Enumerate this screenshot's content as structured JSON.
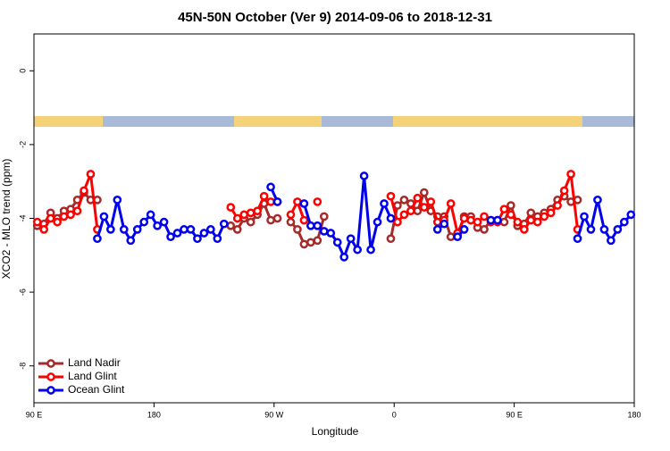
{
  "chart_data": {
    "type": "line",
    "title": "45N-50N October (Ver 9)   2014-09-06 to 2018-12-31",
    "x_label": "Longitude",
    "y_label": "XCO2 - MLO trend (ppm)",
    "x": [
      92.5,
      97.5,
      102.5,
      107.5,
      112.5,
      117.5,
      122.5,
      127.5,
      132.5,
      137.5,
      142.5,
      147.5,
      152.5,
      157.5,
      162.5,
      167.5,
      172.5,
      177.5,
      182.5,
      187.5,
      192.5,
      197.5,
      202.5,
      207.5,
      212.5,
      217.5,
      222.5,
      227.5,
      232.5,
      237.5,
      242.5,
      247.5,
      252.5,
      257.5,
      262.5,
      267.5,
      272.5,
      277.5,
      282.5,
      287.5,
      292.5,
      297.5,
      302.5,
      307.5,
      312.5,
      317.5,
      322.5,
      327.5,
      332.5,
      337.5,
      342.5,
      347.5,
      352.5,
      357.5,
      362.5,
      367.5,
      372.5,
      377.5,
      382.5,
      387.5,
      392.5,
      397.5,
      402.5,
      407.5,
      412.5,
      417.5,
      422.5,
      427.5,
      432.5,
      437.5,
      442.5,
      447.5,
      452.5,
      457.5,
      462.5,
      467.5,
      472.5,
      477.5,
      482.5,
      487.5,
      492.5,
      497.5,
      502.5,
      507.5,
      512.5,
      517.5,
      522.5,
      527.5,
      532.5,
      537.5
    ],
    "series": [
      {
        "name": "Land Nadir",
        "color": "#a52a2a",
        "values": [
          -4.2,
          -4.15,
          -3.85,
          -4.0,
          -3.8,
          -3.75,
          -3.5,
          -3.3,
          -3.5,
          -3.5,
          null,
          null,
          null,
          null,
          null,
          null,
          null,
          null,
          null,
          null,
          null,
          null,
          null,
          null,
          null,
          null,
          null,
          null,
          null,
          -4.2,
          -4.3,
          -4.0,
          -4.1,
          -3.9,
          -3.6,
          -4.05,
          -4.0,
          null,
          -4.1,
          -4.3,
          -4.7,
          -4.65,
          -4.6,
          -3.95,
          null,
          null,
          null,
          null,
          null,
          null,
          null,
          null,
          null,
          -4.55,
          -3.65,
          -3.5,
          -3.6,
          -3.8,
          -3.3,
          -3.8,
          -3.95,
          -3.95,
          -4.5,
          -4.45,
          -3.95,
          -3.95,
          -4.25,
          -4.3,
          -4.05,
          -4.05,
          -4.1,
          -3.65,
          -4.2,
          -4.15,
          -3.85,
          -3.95,
          -3.85,
          -3.75,
          -3.5,
          -3.4,
          -3.55,
          -3.5,
          null,
          null,
          null,
          null,
          null,
          null,
          null,
          null
        ]
      },
      {
        "name": "Land Glint",
        "color": "#ff0000",
        "values": [
          -4.1,
          -4.3,
          -4.0,
          -4.1,
          -3.95,
          -3.9,
          -3.8,
          -3.25,
          -2.8,
          -4.3,
          null,
          null,
          null,
          null,
          null,
          null,
          null,
          null,
          null,
          null,
          null,
          null,
          null,
          null,
          null,
          null,
          null,
          null,
          null,
          -3.7,
          -4.0,
          -3.9,
          -3.85,
          -3.8,
          -3.4,
          -3.55,
          -3.55,
          null,
          -3.9,
          -3.55,
          -4.05,
          null,
          -3.55,
          null,
          null,
          null,
          null,
          null,
          null,
          null,
          null,
          null,
          null,
          -3.4,
          -4.1,
          -3.9,
          -3.8,
          -3.45,
          -3.7,
          -3.55,
          -4.1,
          -4.05,
          -3.6,
          -4.4,
          -4.0,
          -4.05,
          -4.1,
          -3.95,
          -4.1,
          -4.1,
          -3.75,
          -3.9,
          -4.1,
          -4.3,
          -4.05,
          -4.1,
          -3.95,
          -3.85,
          -3.65,
          -3.25,
          -2.8,
          -4.3,
          null,
          null,
          null,
          null,
          null,
          null,
          null,
          null
        ]
      },
      {
        "name": "Ocean Glint",
        "color": "#0000ee",
        "values": [
          null,
          null,
          null,
          null,
          null,
          null,
          null,
          null,
          null,
          -4.55,
          -3.95,
          -4.3,
          -3.5,
          -4.3,
          -4.6,
          -4.3,
          -4.1,
          -3.9,
          -4.2,
          -4.1,
          -4.5,
          -4.4,
          -4.3,
          -4.3,
          -4.55,
          -4.4,
          -4.3,
          -4.55,
          -4.15,
          null,
          null,
          null,
          null,
          null,
          null,
          -3.15,
          -3.55,
          null,
          null,
          null,
          -3.6,
          -4.2,
          -4.2,
          -4.35,
          -4.4,
          -4.65,
          -5.05,
          -4.55,
          -4.85,
          -2.85,
          -4.85,
          -4.1,
          -3.6,
          -4.0,
          null,
          null,
          null,
          null,
          null,
          null,
          -4.3,
          -4.15,
          null,
          -4.5,
          -4.3,
          null,
          null,
          null,
          -4.05,
          -4.05,
          null,
          null,
          null,
          null,
          null,
          null,
          null,
          null,
          null,
          null,
          null,
          -4.55,
          -3.95,
          -4.3,
          -3.5,
          -4.3,
          -4.6,
          -4.3,
          -4.1,
          -3.9
        ]
      }
    ],
    "xlim": [
      90,
      540
    ],
    "xticks": [
      {
        "value": 90,
        "label": "90 E"
      },
      180,
      {
        "value": 270,
        "label": "90 W"
      },
      {
        "value": 360,
        "label": "0"
      },
      {
        "value": 450,
        "label": "90 E"
      },
      {
        "value": 540,
        "label": "180"
      }
    ],
    "ylim": [
      -9,
      1
    ],
    "yticks": [
      0,
      -2,
      -4,
      -6,
      -8
    ],
    "legend": "bottom-left"
  }
}
